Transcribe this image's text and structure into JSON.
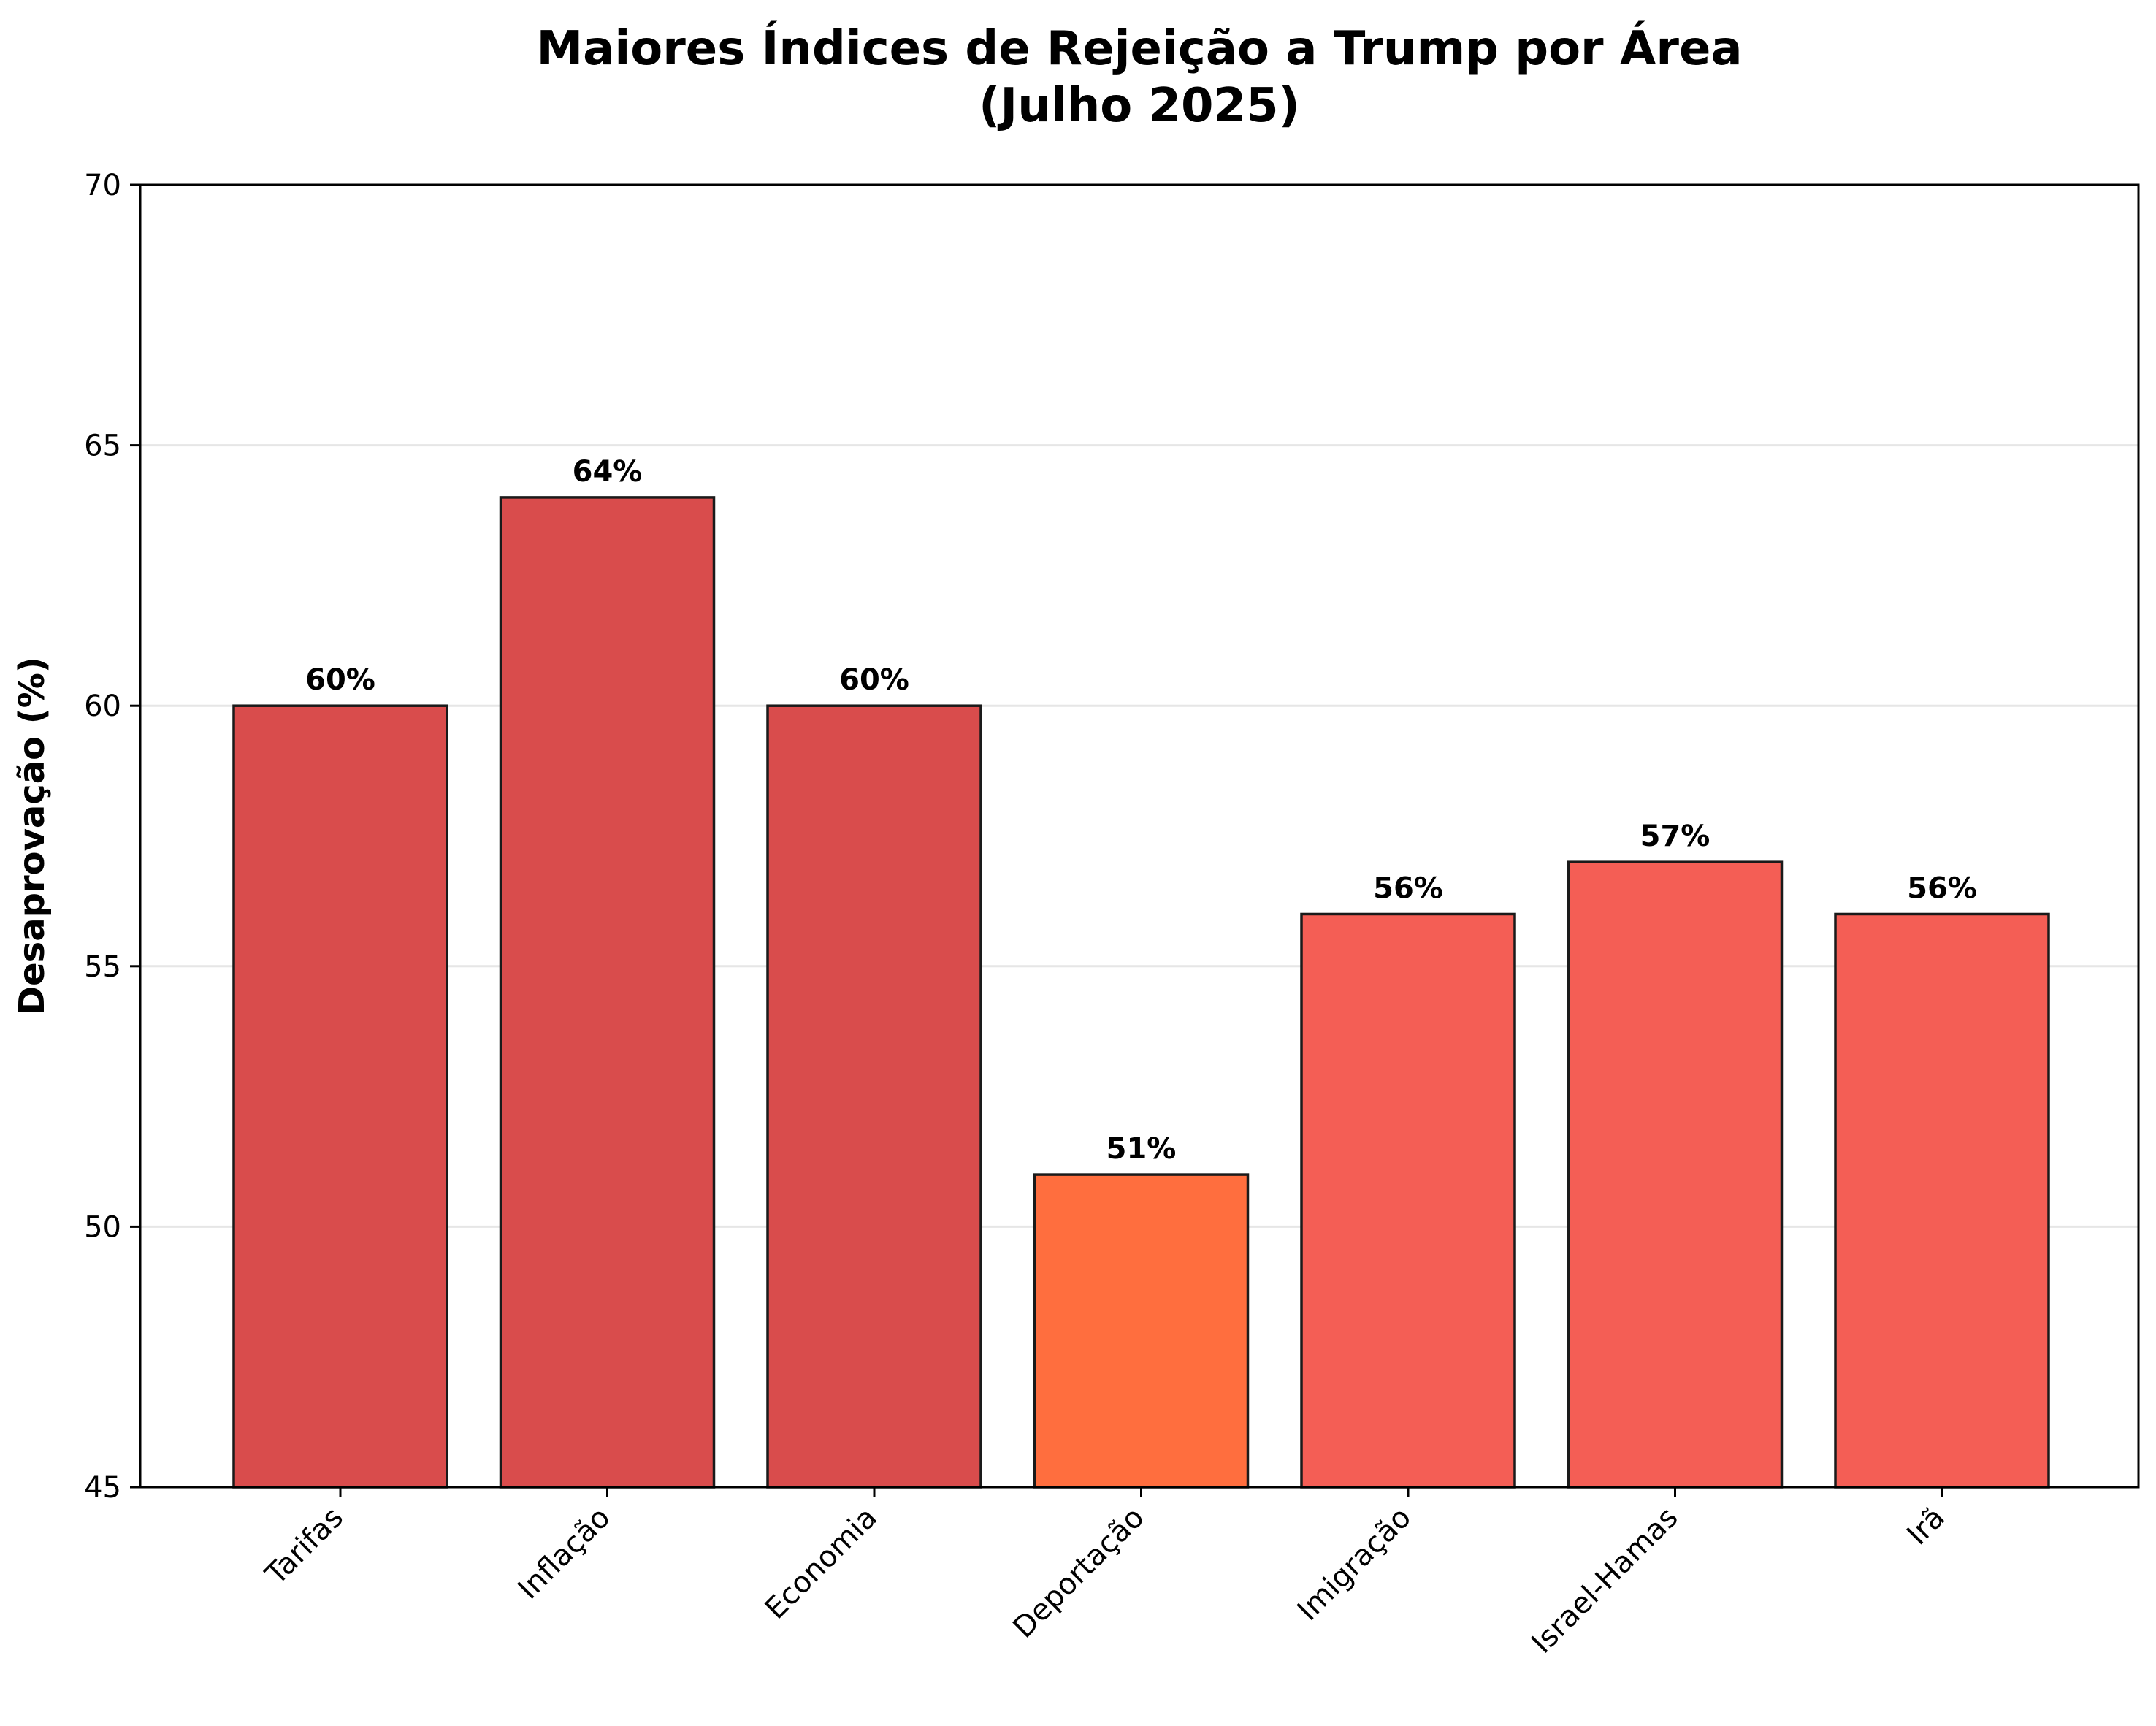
{
  "chart_data": {
    "type": "bar",
    "title": "Maiores Índices de Rejeição a Trump por Área",
    "subtitle": "(Julho 2025)",
    "xlabel": "",
    "ylabel": "Desaprovação (%)",
    "ylim": [
      45,
      70
    ],
    "yticks": [
      45,
      50,
      55,
      60,
      65,
      70
    ],
    "grid": "horizontal",
    "categories": [
      "Tarifas",
      "Inflação",
      "Economia",
      "Deportação",
      "Imigração",
      "Israel-Hamas",
      "Irã"
    ],
    "values": [
      60,
      64,
      60,
      51,
      56,
      57,
      56
    ],
    "value_labels": [
      "60%",
      "64%",
      "60%",
      "51%",
      "56%",
      "57%",
      "56%"
    ],
    "colors": [
      "#d94c4c",
      "#d94c4c",
      "#d94c4c",
      "#ff6e3e",
      "#f45e55",
      "#f45e55",
      "#f45e55"
    ]
  }
}
